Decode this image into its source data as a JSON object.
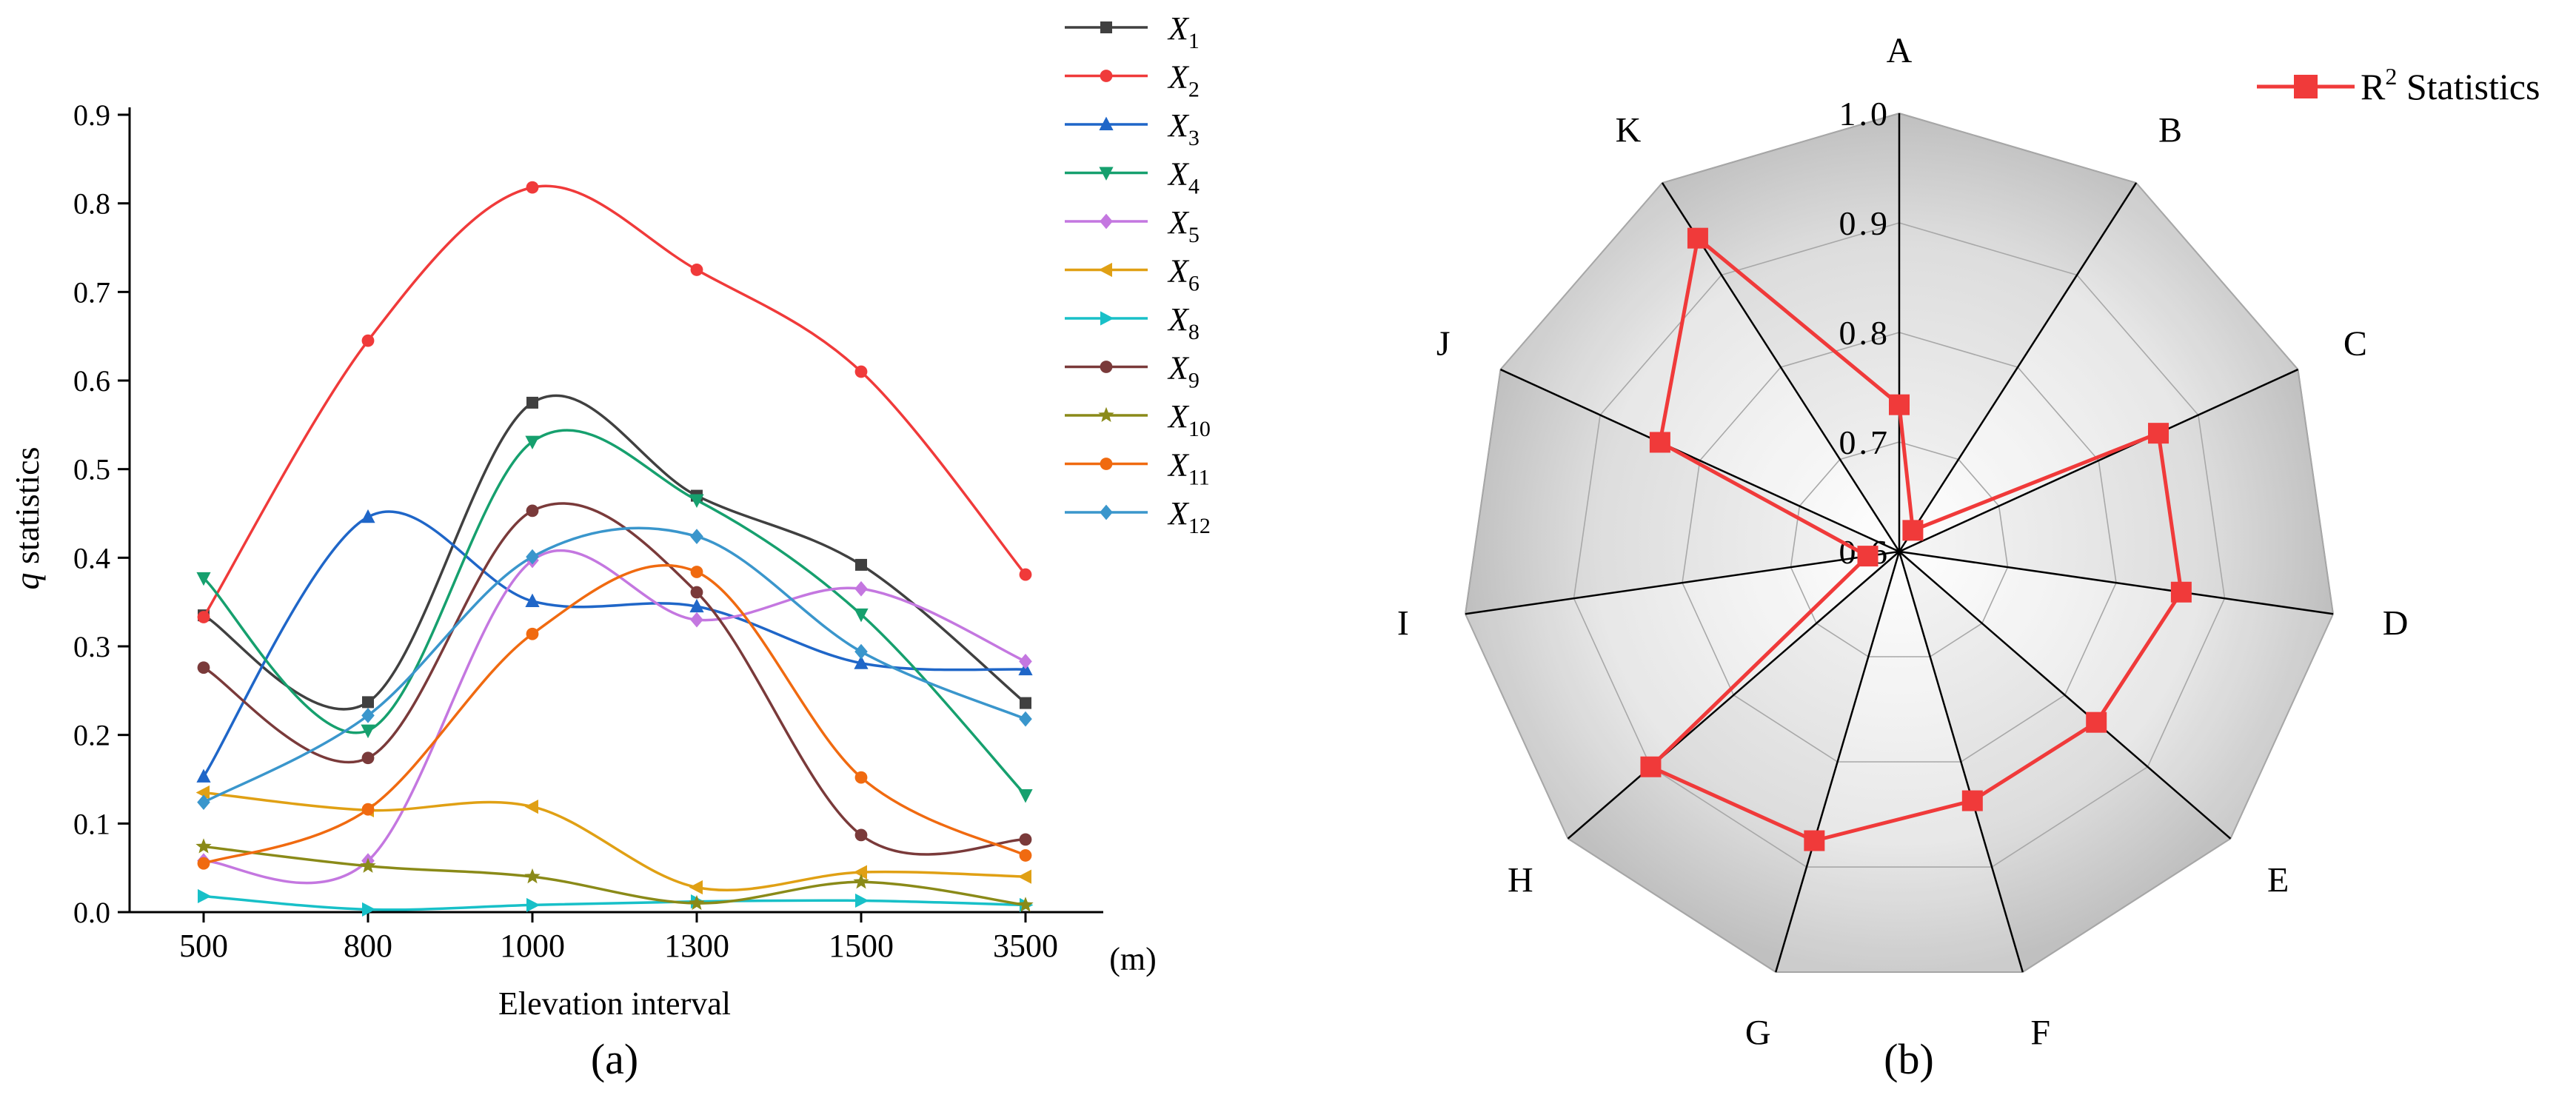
{
  "chart_data": [
    {
      "type": "line",
      "panel_label": "(a)",
      "xlabel": "Elevation interval",
      "x_unit": "(m)",
      "ylabel": "q statistics",
      "categories": [
        "500",
        "800",
        "1000",
        "1300",
        "1500",
        "3500"
      ],
      "ylim": [
        0,
        0.9
      ],
      "yticks": [
        "0.0",
        "0.1",
        "0.2",
        "0.3",
        "0.4",
        "0.5",
        "0.6",
        "0.7",
        "0.8",
        "0.9"
      ],
      "series": [
        {
          "name": "X",
          "sub": "1",
          "color": "#404040",
          "marker": "square",
          "values": [
            0.335,
            0.237,
            0.575,
            0.47,
            0.392,
            0.236
          ]
        },
        {
          "name": "X",
          "sub": "2",
          "color": "#f03a3a",
          "marker": "circle",
          "values": [
            0.333,
            0.645,
            0.818,
            0.725,
            0.61,
            0.381
          ]
        },
        {
          "name": "X",
          "sub": "3",
          "color": "#1f66c8",
          "marker": "triangle",
          "values": [
            0.153,
            0.446,
            0.351,
            0.345,
            0.281,
            0.274
          ]
        },
        {
          "name": "X",
          "sub": "4",
          "color": "#16a06e",
          "marker": "tridown",
          "values": [
            0.377,
            0.205,
            0.531,
            0.465,
            0.336,
            0.132
          ]
        },
        {
          "name": "X",
          "sub": "5",
          "color": "#c477e0",
          "marker": "diamond",
          "values": [
            0.058,
            0.058,
            0.397,
            0.33,
            0.365,
            0.283
          ]
        },
        {
          "name": "X",
          "sub": "6",
          "color": "#e0a014",
          "marker": "trileft",
          "values": [
            0.135,
            0.115,
            0.119,
            0.028,
            0.045,
            0.04
          ]
        },
        {
          "name": "X",
          "sub": "8",
          "color": "#18c0c8",
          "marker": "triright",
          "values": [
            0.018,
            0.003,
            0.008,
            0.012,
            0.013,
            0.008
          ]
        },
        {
          "name": "X",
          "sub": "9",
          "color": "#7a3a3a",
          "marker": "circle",
          "values": [
            0.276,
            0.174,
            0.453,
            0.361,
            0.087,
            0.082
          ]
        },
        {
          "name": "X",
          "sub": "10",
          "color": "#8a8a18",
          "marker": "star",
          "values": [
            0.074,
            0.052,
            0.04,
            0.01,
            0.034,
            0.008
          ]
        },
        {
          "name": "X",
          "sub": "11",
          "color": "#f06a10",
          "marker": "circle",
          "values": [
            0.055,
            0.116,
            0.314,
            0.384,
            0.152,
            0.064
          ]
        },
        {
          "name": "X",
          "sub": "12",
          "color": "#3a96cc",
          "marker": "diamond",
          "values": [
            0.124,
            0.222,
            0.401,
            0.424,
            0.294,
            0.218
          ]
        }
      ],
      "legend": "top-right outside"
    },
    {
      "type": "radar",
      "panel_label": "(b)",
      "categories": [
        "A",
        "B",
        "C",
        "D",
        "E",
        "F",
        "G",
        "H",
        "I",
        "J",
        "K"
      ],
      "rlim": [
        0.6,
        1.0
      ],
      "rticks": [
        "0.6",
        "0.7",
        "0.8",
        "0.9",
        "1.0"
      ],
      "series": [
        {
          "name": "R² Statistics",
          "color": "#f03a3a",
          "marker": "square",
          "values": [
            0.734,
            0.623,
            0.86,
            0.86,
            0.838,
            0.837,
            0.875,
            0.9,
            0.629,
            0.84,
            0.94
          ]
        }
      ],
      "legend_text": "R",
      "legend_sup": "2",
      "legend_suffix": " Statistics",
      "legend": "top-right"
    }
  ]
}
